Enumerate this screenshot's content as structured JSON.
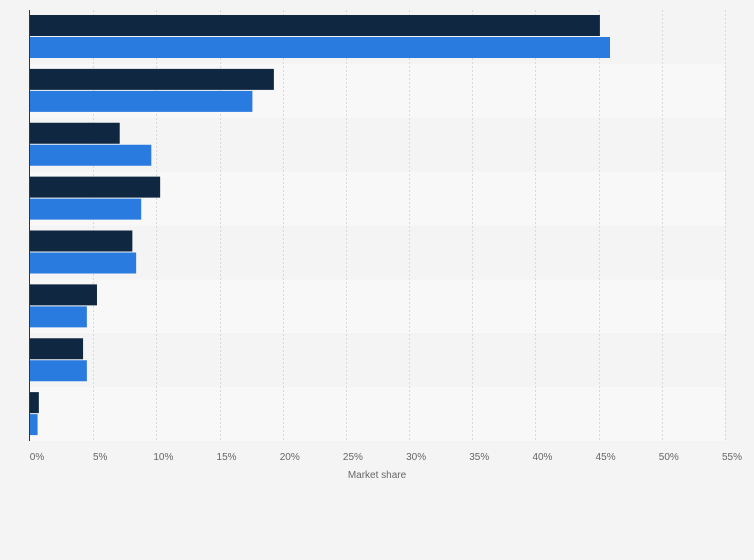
{
  "chart_data": {
    "type": "bar",
    "orientation": "horizontal",
    "title": "",
    "xlabel": "Market share",
    "ylabel": "",
    "xlim": [
      0,
      55
    ],
    "x_ticks": [
      0,
      5,
      10,
      15,
      20,
      25,
      30,
      35,
      40,
      45,
      50,
      55
    ],
    "x_tick_labels": [
      "0%",
      "5%",
      "10%",
      "15%",
      "20%",
      "25%",
      "30%",
      "35%",
      "40%",
      "45%",
      "50%",
      "55%"
    ],
    "value_suffix": "%",
    "categories": [
      "",
      "",
      "",
      "",
      "",
      "",
      "",
      ""
    ],
    "series": [
      {
        "color": "#0f2740",
        "values": [
          45.1,
          19.3,
          7.1,
          10.3,
          8.1,
          5.3,
          4.2,
          0.7
        ]
      },
      {
        "color": "#2a7bdf",
        "values": [
          45.9,
          17.6,
          9.6,
          8.8,
          8.4,
          4.5,
          4.5,
          0.6
        ]
      }
    ],
    "grid": true,
    "legend": "none",
    "colors": {
      "background": "#f4f4f4",
      "band_alt": "#f8f8f8",
      "grid": "#d9d9d9",
      "axis": "#333333"
    }
  }
}
